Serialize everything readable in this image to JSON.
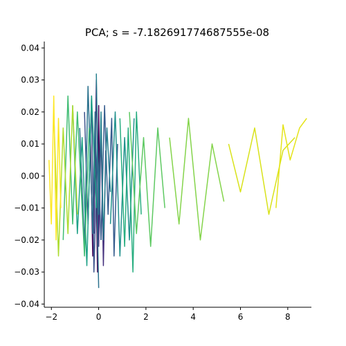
{
  "chart_data": {
    "type": "line",
    "title": "PCA; s = -7.182691774687555e-08",
    "xlabel": "",
    "ylabel": "",
    "xlim": [
      -2.3,
      9.0
    ],
    "ylim": [
      -0.041,
      0.042
    ],
    "grid": false,
    "legend": "none",
    "colormap": "viridis",
    "xticks": [
      -2,
      0,
      2,
      4,
      6,
      8
    ],
    "xtick_labels": [
      "−2",
      "0",
      "2",
      "4",
      "6",
      "8"
    ],
    "yticks": [
      -0.04,
      -0.03,
      -0.02,
      -0.01,
      0.0,
      0.01,
      0.02,
      0.03,
      0.04
    ],
    "ytick_labels": [
      "−0.04",
      "−0.03",
      "−0.02",
      "−0.01",
      "0.00",
      "0.01",
      "0.02",
      "0.03",
      "0.04"
    ],
    "series": [
      {
        "color": "#440154",
        "x": [
          -0.35,
          -0.25,
          -0.15,
          -0.05,
          0.0,
          0.05
        ],
        "y": [
          0.012,
          -0.025,
          0.018,
          -0.03,
          0.022,
          -0.01
        ]
      },
      {
        "color": "#46327e",
        "x": [
          -0.2,
          -0.1,
          0.0,
          0.1,
          0.2,
          0.3
        ],
        "y": [
          -0.018,
          0.03,
          -0.022,
          0.015,
          -0.028,
          0.008
        ]
      },
      {
        "color": "#3b528b",
        "x": [
          -0.6,
          -0.45,
          -0.3,
          -0.2,
          -0.05,
          0.1
        ],
        "y": [
          0.02,
          -0.015,
          0.025,
          -0.03,
          0.01,
          -0.02
        ]
      },
      {
        "color": "#365c8d",
        "x": [
          0.1,
          0.25,
          0.4,
          0.55,
          0.65,
          0.8
        ],
        "y": [
          -0.02,
          0.022,
          -0.012,
          0.018,
          -0.025,
          0.01
        ]
      },
      {
        "color": "#2c728e",
        "x": [
          -0.8,
          -0.6,
          -0.45,
          -0.25,
          -0.15,
          0.0
        ],
        "y": [
          0.015,
          -0.022,
          0.028,
          -0.018,
          0.02,
          -0.035
        ]
      },
      {
        "color": "#27808e",
        "x": [
          -0.1,
          0.0,
          0.1,
          0.2,
          0.35,
          0.5
        ],
        "y": [
          0.032,
          -0.012,
          0.02,
          -0.02,
          0.015,
          -0.005
        ]
      },
      {
        "color": "#21918c",
        "x": [
          0.5,
          0.7,
          0.9,
          1.1,
          1.3,
          1.5
        ],
        "y": [
          -0.015,
          0.02,
          -0.025,
          0.012,
          -0.02,
          0.018
        ]
      },
      {
        "color": "#1fa187",
        "x": [
          -1.1,
          -0.9,
          -0.7,
          -0.5,
          -0.3,
          -0.1
        ],
        "y": [
          0.022,
          -0.018,
          0.012,
          -0.028,
          0.025,
          -0.01
        ]
      },
      {
        "color": "#28ae80",
        "x": [
          0.9,
          1.1,
          1.25,
          1.45,
          1.6,
          1.8
        ],
        "y": [
          0.018,
          -0.022,
          0.015,
          -0.03,
          0.02,
          -0.012
        ]
      },
      {
        "color": "#3fbc73",
        "x": [
          -1.5,
          -1.3,
          -1.1,
          -0.9,
          -0.6,
          -0.4
        ],
        "y": [
          -0.02,
          0.025,
          -0.015,
          0.02,
          -0.025,
          0.015
        ]
      },
      {
        "color": "#5ec962",
        "x": [
          1.3,
          1.6,
          1.9,
          2.2,
          2.5,
          2.8
        ],
        "y": [
          0.02,
          -0.018,
          0.012,
          -0.022,
          0.015,
          -0.01
        ]
      },
      {
        "color": "#84d44b",
        "x": [
          3.0,
          3.4,
          3.8,
          4.3,
          4.8,
          5.3
        ],
        "y": [
          0.012,
          -0.015,
          0.018,
          -0.02,
          0.01,
          -0.008
        ]
      },
      {
        "color": "#addc30",
        "x": [
          -1.9,
          -1.7,
          -1.5,
          -1.3,
          -1.1,
          -0.9
        ],
        "y": [
          0.02,
          -0.025,
          0.015,
          -0.018,
          0.022,
          -0.012
        ]
      },
      {
        "color": "#d8e219",
        "x": [
          5.5,
          6.0,
          6.6,
          7.2,
          7.8,
          8.3
        ],
        "y": [
          0.01,
          -0.005,
          0.015,
          -0.012,
          0.008,
          0.012
        ]
      },
      {
        "color": "#e5e419",
        "x": [
          7.5,
          7.8,
          8.1,
          8.5,
          8.8
        ],
        "y": [
          -0.01,
          0.016,
          0.005,
          0.015,
          0.018
        ]
      },
      {
        "color": "#fde725",
        "x": [
          -2.1,
          -2.0,
          -1.9,
          -1.8,
          -1.7,
          -1.6
        ],
        "y": [
          0.005,
          -0.015,
          0.025,
          -0.02,
          0.018,
          -0.01
        ]
      }
    ]
  }
}
